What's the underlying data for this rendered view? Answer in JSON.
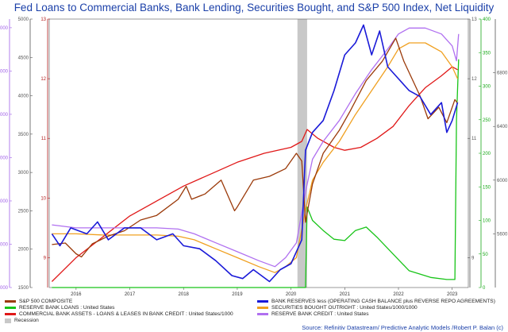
{
  "title": "Fed Loans to Commercial Banks, Bank Lending, Securities Bought, and S&P 500 Index, Net Liquidity",
  "source": "Source: Refinitiv Datastream/ Predictive Analytic Models /Robert P. Balan (c)",
  "colors": {
    "sp500": "#9b3a0a",
    "reserve_loans": "#18c418",
    "commercial": "#e01818",
    "recession": "#c8c8c8",
    "bank_reserves": "#1a1ad8",
    "securities": "#f0a020",
    "reserve_credit": "#b070f0"
  },
  "legend": [
    {
      "key": "sp500",
      "label": "S&P 500 COMPOSITE",
      "kind": "line"
    },
    {
      "key": "reserve_loans",
      "label": "RESERVE BANK LOANS : United States",
      "kind": "line"
    },
    {
      "key": "commercial",
      "label": "COMMERCIAL BANK ASSETS - LOANS & LEASES IN BANK CREDIT : United States/1000",
      "kind": "line"
    },
    {
      "key": "recession",
      "label": "Recession",
      "kind": "box"
    },
    {
      "key": "bank_reserves",
      "label": "BANK RESERVES less (OPERATING CASH BALANCE plus REVERSE REPO AGREEMENTS)",
      "kind": "line"
    },
    {
      "key": "securities",
      "label": "SECURITIES BOUGHT OUTRIGHT : United States/1000/1000",
      "kind": "line"
    },
    {
      "key": "reserve_credit",
      "label": "RESERVE BANK CREDIT : United States",
      "kind": "line"
    }
  ],
  "chart_data": {
    "type": "line",
    "x_ticks": [
      "2016",
      "2017",
      "2018",
      "2019",
      "2020",
      "2021",
      "2022",
      "2023"
    ],
    "xlim": [
      2015.5,
      2023.3
    ],
    "recession": [
      2020.12,
      2020.3
    ],
    "axes": {
      "left_purple": {
        "ticks": [
          "3000",
          "4000",
          "5000",
          "6000",
          "7000",
          "8000",
          "9000"
        ],
        "ylim": [
          3000,
          9200
        ]
      },
      "left_gray": {
        "ticks": [
          "1500",
          "2000",
          "2500",
          "3000",
          "3500",
          "4000",
          "4500",
          "5000"
        ],
        "ylim": [
          1500,
          5000
        ]
      },
      "left_red": {
        "ticks": [
          "9",
          "10",
          "11",
          "12",
          "13"
        ],
        "ylim": [
          8.5,
          13
        ]
      },
      "right_green": {
        "ticks": [
          "0",
          "50",
          "100",
          "150",
          "200",
          "250",
          "300",
          "350",
          "400"
        ],
        "ylim": [
          0,
          400
        ]
      },
      "right_blue": {
        "ticks": [
          "9",
          "11",
          "12",
          "13"
        ],
        "ylim": [
          8.5,
          13
        ]
      },
      "right_gray": {
        "ticks": [
          "5600",
          "6000",
          "6400",
          "6800"
        ],
        "ylim": [
          5200,
          7200
        ]
      }
    },
    "series": [
      {
        "key": "sp500",
        "name": "S&P 500 COMPOSITE",
        "axis": "left_gray",
        "x": [
          2015.55,
          2015.8,
          2016.0,
          2016.1,
          2016.3,
          2016.6,
          2016.9,
          2017.2,
          2017.5,
          2017.9,
          2018.05,
          2018.15,
          2018.4,
          2018.7,
          2018.95,
          2019.0,
          2019.3,
          2019.6,
          2019.9,
          2020.1,
          2020.2,
          2020.27,
          2020.4,
          2020.6,
          2020.9,
          2021.1,
          2021.4,
          2021.7,
          2021.95,
          2022.1,
          2022.4,
          2022.55,
          2022.75,
          2022.9,
          2023.05,
          2023.1
        ],
        "y": [
          2060,
          2080,
          1940,
          1900,
          2070,
          2170,
          2240,
          2380,
          2440,
          2650,
          2820,
          2650,
          2720,
          2900,
          2500,
          2550,
          2900,
          2950,
          3050,
          3250,
          3150,
          2350,
          2850,
          3250,
          3550,
          3800,
          4200,
          4450,
          4750,
          4450,
          4000,
          3700,
          3850,
          3650,
          3950,
          3900
        ]
      },
      {
        "key": "reserve_loans",
        "name": "RESERVE BANK LOANS : United States",
        "axis": "right_green",
        "x": [
          2015.55,
          2019.9,
          2020.27,
          2020.3,
          2020.4,
          2020.6,
          2020.8,
          2021.0,
          2021.2,
          2021.4,
          2021.6,
          2021.9,
          2022.2,
          2022.6,
          2022.9,
          2023.0,
          2023.05,
          2023.08,
          2023.12
        ],
        "y": [
          0,
          0,
          0,
          120,
          100,
          85,
          72,
          70,
          85,
          90,
          75,
          50,
          25,
          15,
          12,
          12,
          12,
          250,
          340
        ]
      },
      {
        "key": "commercial",
        "name": "COMMERCIAL BANK ASSETS - LOANS & LEASES IN BANK CREDIT : United States/1000",
        "axis": "left_red",
        "x": [
          2015.55,
          2016.0,
          2016.5,
          2017.0,
          2017.5,
          2018.0,
          2018.5,
          2019.0,
          2019.5,
          2020.0,
          2020.2,
          2020.3,
          2020.5,
          2020.8,
          2021.0,
          2021.3,
          2021.6,
          2021.9,
          2022.2,
          2022.5,
          2022.8,
          2023.0,
          2023.1
        ],
        "y": [
          8.6,
          9.0,
          9.35,
          9.7,
          9.95,
          10.2,
          10.4,
          10.6,
          10.75,
          10.85,
          10.95,
          11.15,
          11.0,
          10.85,
          10.8,
          10.85,
          11.0,
          11.2,
          11.55,
          11.85,
          12.05,
          12.2,
          12.15
        ]
      },
      {
        "key": "bank_reserves",
        "name": "BANK RESERVES less (OPERATING CASH BALANCE plus REVERSE REPO AGREEMENTS)",
        "axis": "right_blue",
        "x": [
          2015.55,
          2015.7,
          2015.9,
          2016.2,
          2016.4,
          2016.6,
          2016.9,
          2017.2,
          2017.5,
          2017.8,
          2018.0,
          2018.3,
          2018.6,
          2018.9,
          2019.1,
          2019.3,
          2019.6,
          2019.8,
          2020.0,
          2020.2,
          2020.27,
          2020.4,
          2020.6,
          2020.8,
          2021.0,
          2021.2,
          2021.35,
          2021.5,
          2021.65,
          2021.8,
          2022.0,
          2022.2,
          2022.4,
          2022.6,
          2022.8,
          2022.9,
          2023.0,
          2023.1
        ],
        "y": [
          9.4,
          9.2,
          9.5,
          9.4,
          9.6,
          9.3,
          9.5,
          9.5,
          9.3,
          9.4,
          9.2,
          9.15,
          8.95,
          8.7,
          8.65,
          8.8,
          8.6,
          8.8,
          8.9,
          9.3,
          10.8,
          11.1,
          11.3,
          11.8,
          12.4,
          12.6,
          12.9,
          12.4,
          12.8,
          12.2,
          12.0,
          11.8,
          11.7,
          11.4,
          11.6,
          11.1,
          11.3,
          11.6
        ]
      },
      {
        "key": "securities",
        "name": "SECURITIES BOUGHT OUTRIGHT : United States/1000/1000",
        "axis": "right_blue",
        "x": [
          2015.55,
          2016.0,
          2016.5,
          2017.0,
          2017.5,
          2017.9,
          2018.2,
          2018.6,
          2019.0,
          2019.4,
          2019.7,
          2019.9,
          2020.1,
          2020.27,
          2020.4,
          2020.6,
          2020.9,
          2021.2,
          2021.5,
          2021.8,
          2022.0,
          2022.2,
          2022.5,
          2022.8,
          2023.0,
          2023.1
        ],
        "y": [
          9.4,
          9.4,
          9.38,
          9.38,
          9.38,
          9.36,
          9.3,
          9.15,
          9.0,
          8.85,
          8.75,
          8.85,
          9.0,
          9.8,
          10.3,
          10.6,
          10.95,
          11.4,
          11.8,
          12.2,
          12.5,
          12.6,
          12.6,
          12.45,
          12.2,
          12.0
        ]
      },
      {
        "key": "reserve_credit",
        "name": "RESERVE BANK CREDIT : United States",
        "axis": "right_blue",
        "x": [
          2015.55,
          2016.0,
          2016.5,
          2017.0,
          2017.5,
          2017.9,
          2018.2,
          2018.6,
          2019.0,
          2019.4,
          2019.7,
          2019.9,
          2020.1,
          2020.27,
          2020.4,
          2020.6,
          2020.9,
          2021.2,
          2021.5,
          2021.8,
          2022.0,
          2022.2,
          2022.5,
          2022.8,
          2023.0,
          2023.08,
          2023.12
        ],
        "y": [
          9.55,
          9.5,
          9.5,
          9.5,
          9.5,
          9.48,
          9.4,
          9.25,
          9.1,
          8.95,
          8.85,
          9.0,
          9.25,
          10.1,
          10.65,
          10.95,
          11.3,
          11.75,
          12.15,
          12.5,
          12.75,
          12.85,
          12.85,
          12.75,
          12.55,
          12.3,
          12.75
        ]
      }
    ]
  }
}
